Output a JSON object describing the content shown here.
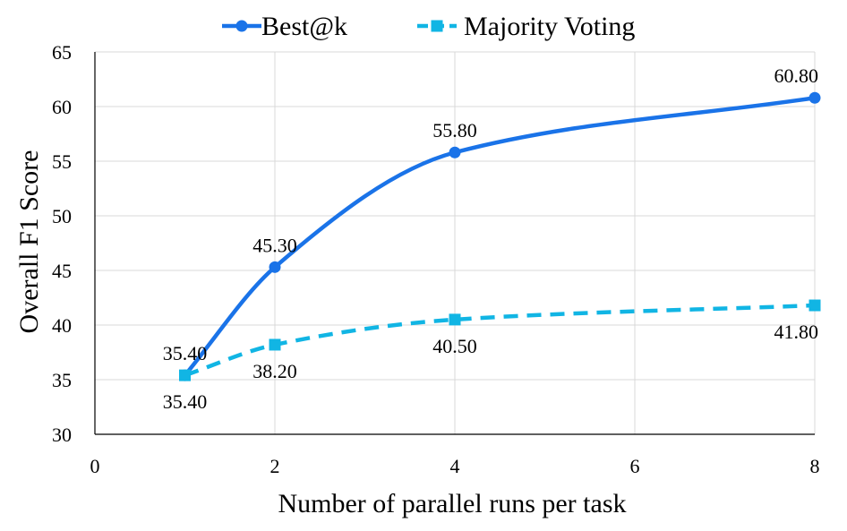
{
  "chart_data": {
    "type": "line",
    "title": "",
    "xlabel": "Number of  parallel runs per task",
    "ylabel": "Overall F1 Score",
    "xlim": [
      0,
      8
    ],
    "ylim": [
      30,
      65
    ],
    "xticks": [
      0,
      2,
      4,
      6,
      8
    ],
    "yticks": [
      30,
      35,
      40,
      45,
      50,
      55,
      60,
      65
    ],
    "grid": "horizontal",
    "legend_position": "top",
    "series": [
      {
        "name": "Best@k",
        "color": "#1a73e8",
        "line_style": "solid",
        "marker": "circle",
        "smooth": true,
        "x": [
          1,
          2,
          4,
          8
        ],
        "values": [
          35.4,
          45.3,
          55.8,
          60.8
        ],
        "labels": [
          "35.40",
          "45.30",
          "55.80",
          "60.80"
        ],
        "label_position": [
          "above",
          "above",
          "above",
          "above"
        ]
      },
      {
        "name": "Majority Voting",
        "color": "#11b5e4",
        "line_style": "dashed",
        "marker": "square",
        "smooth": true,
        "x": [
          1,
          2,
          4,
          8
        ],
        "values": [
          35.4,
          38.2,
          40.5,
          41.8
        ],
        "labels": [
          "35.40",
          "38.20",
          "40.50",
          "41.80"
        ],
        "label_position": [
          "below",
          "below",
          "below",
          "below"
        ]
      }
    ]
  }
}
